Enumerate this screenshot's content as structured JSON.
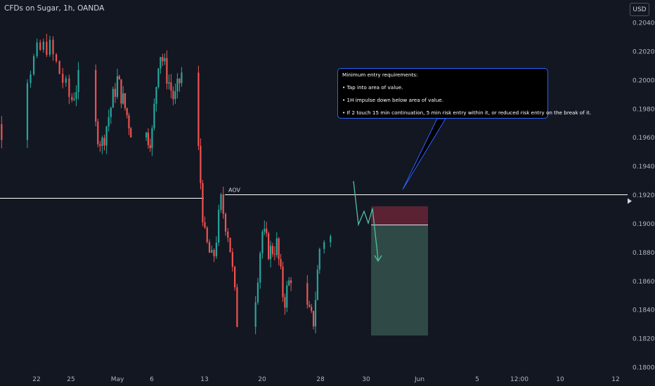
{
  "header": {
    "symbol_title": "CFDs on Sugar, 1h, OANDA",
    "currency_label": "USD"
  },
  "annotation": {
    "heading": "Minimum entry requirements:",
    "bullets": [
      "• Tap into area of value.",
      "• 1H impulse down below area of value.",
      "• If 2 touch 15 min continuation, 5 min risk entry within it, or reduced risk entry on the break of it."
    ]
  },
  "colors": {
    "background": "#131722",
    "bull": "#26a69a",
    "bear": "#ef5350",
    "level_line": "#ffffff",
    "callout_border": "#2962ff",
    "stop_zone": "#5a2232",
    "target_zone": "#2f4a46",
    "projection": "#4fc0a0"
  },
  "chart_data": {
    "type": "candlestick",
    "instrument": "CFDs on Sugar",
    "timeframe": "1h",
    "broker": "OANDA",
    "y_axis": {
      "ticks": [
        "0.20400",
        "0.20200",
        "0.20000",
        "0.19800",
        "0.19600",
        "0.19400",
        "0.19200",
        "0.19000",
        "0.18800",
        "0.18600",
        "0.18400",
        "0.18200",
        "0.18000"
      ],
      "range": [
        0.18,
        0.205
      ]
    },
    "x_axis": {
      "ticks": [
        "22",
        "25",
        "May",
        "6",
        "13",
        "20",
        "28",
        "30",
        "Jun",
        "5",
        "12:00",
        "10",
        "12"
      ]
    },
    "level": {
      "label": "AOV",
      "price": 0.192
    },
    "position": {
      "type": "short",
      "entry": 0.1899,
      "stop": 0.1912,
      "target": 0.1822,
      "time_start": "30",
      "time_end": "Jun"
    },
    "price_path": [
      {
        "t": "Apr 17",
        "close": 0.1985
      },
      {
        "t": "Apr 19",
        "close": 0.1965
      },
      {
        "t": "Apr 22",
        "close": 0.2018
      },
      {
        "t": "Apr 23",
        "close": 0.2025
      },
      {
        "t": "Apr 25",
        "close": 0.1985
      },
      {
        "t": "Apr 26",
        "close": 0.2
      },
      {
        "t": "Apr 29",
        "close": 0.1955
      },
      {
        "t": "May 1",
        "close": 0.2
      },
      {
        "t": "May 3",
        "close": 0.1965
      },
      {
        "t": "May 6",
        "close": 0.196
      },
      {
        "t": "May 7",
        "close": 0.2022
      },
      {
        "t": "May 9",
        "close": 0.1985
      },
      {
        "t": "May 10",
        "close": 0.2005
      },
      {
        "t": "May 12",
        "close": 0.1965
      },
      {
        "t": "May 13",
        "close": 0.189
      },
      {
        "t": "May 14",
        "close": 0.1872
      },
      {
        "t": "May 15",
        "close": 0.1915
      },
      {
        "t": "May 16",
        "close": 0.189
      },
      {
        "t": "May 17",
        "close": 0.183
      },
      {
        "t": "May 19",
        "close": 0.184
      },
      {
        "t": "May 20",
        "close": 0.1895
      },
      {
        "t": "May 21",
        "close": 0.188
      },
      {
        "t": "May 22",
        "close": 0.1885
      },
      {
        "t": "May 23",
        "close": 0.1845
      },
      {
        "t": "May 24",
        "close": 0.1865
      },
      {
        "t": "May 27",
        "close": 0.183
      },
      {
        "t": "May 28",
        "close": 0.189
      }
    ],
    "projection_path": [
      {
        "t": "May 29",
        "price": 0.193
      },
      {
        "t": "May 30",
        "price": 0.19
      },
      {
        "t": "May 30",
        "price": 0.191
      },
      {
        "t": "May 31",
        "price": 0.19
      },
      {
        "t": "May 31",
        "price": 0.1908
      },
      {
        "t": "Jun 1",
        "price": 0.1872
      }
    ]
  }
}
